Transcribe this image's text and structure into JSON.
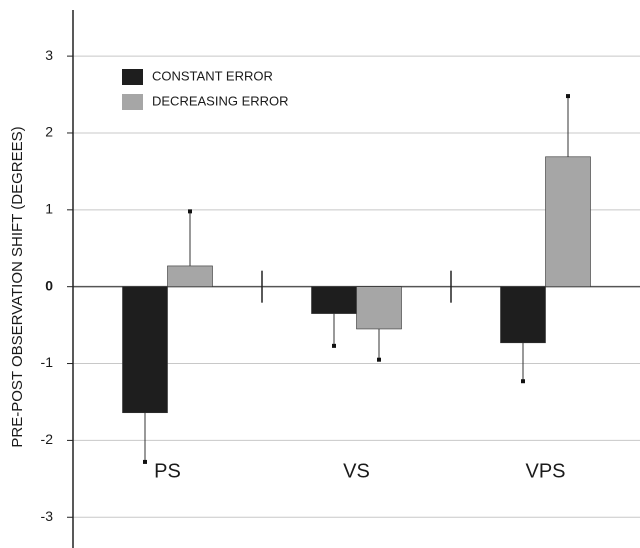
{
  "chart_data": {
    "type": "bar",
    "ylabel": "PRE-POST OBSERVATION SHIFT (DEGREES)",
    "categories": [
      "PS",
      "VS",
      "VPS"
    ],
    "series": [
      {
        "name": "CONSTANT ERROR",
        "color": "#1e1e1e",
        "values": [
          -1.64,
          -0.35,
          -0.73
        ],
        "errors": [
          0.64,
          0.42,
          0.5
        ]
      },
      {
        "name": "DECREASING ERROR",
        "color": "#a6a6a6",
        "values": [
          0.27,
          -0.55,
          1.69
        ],
        "errors": [
          0.71,
          0.4,
          0.79
        ]
      }
    ],
    "ylim": [
      -3.4,
      3.6
    ],
    "yticks": [
      -3,
      -2,
      -1,
      0,
      1,
      2,
      3
    ],
    "grid": true,
    "legend": "upper left"
  }
}
